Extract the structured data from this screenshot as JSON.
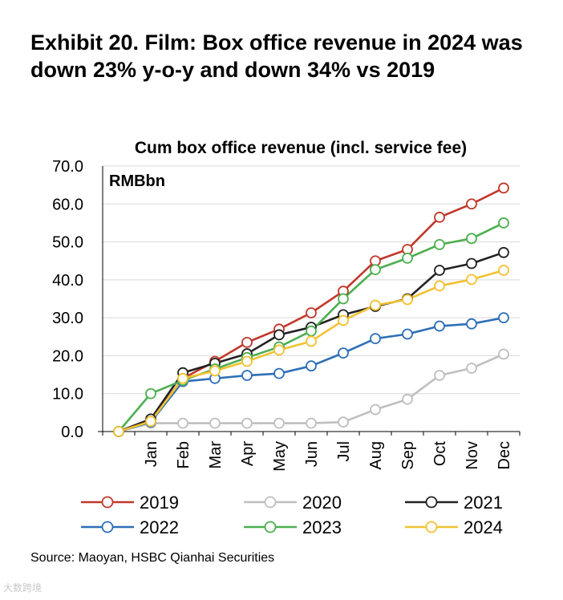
{
  "exhibit": {
    "title": "Exhibit 20. Film: Box office revenue in 2024 was down 23% y-o-y and down 34% vs 2019"
  },
  "footer": {
    "source": "Source: Maoyan, HSBC Qianhai Securities"
  },
  "watermark": {
    "text": "大数跨境"
  },
  "chart_data": {
    "type": "line",
    "title": "Cum box office revenue (incl. service fee)",
    "unit_label": "RMBbn",
    "categories": [
      "",
      "Jan",
      "Feb",
      "Mar",
      "Apr",
      "May",
      "Jun",
      "Jul",
      "Aug",
      "Sep",
      "Oct",
      "Nov",
      "Dec"
    ],
    "ylim": [
      0,
      70
    ],
    "yticks": [
      "0.0",
      "10.0",
      "20.0",
      "30.0",
      "40.0",
      "50.0",
      "60.0",
      "70.0"
    ],
    "grid": true,
    "legend_position": "bottom",
    "series": [
      {
        "name": "2019",
        "color": "#c0392b",
        "values": [
          0,
          3.0,
          14.0,
          18.5,
          23.5,
          27.0,
          31.3,
          37.0,
          45.0,
          48.0,
          56.5,
          60.0,
          64.2
        ]
      },
      {
        "name": "2020",
        "color": "#bfbfbf",
        "values": [
          0,
          2.2,
          2.2,
          2.2,
          2.2,
          2.2,
          2.2,
          2.5,
          5.8,
          8.5,
          14.8,
          16.7,
          20.4
        ]
      },
      {
        "name": "2021",
        "color": "#222222",
        "values": [
          0,
          3.3,
          15.5,
          18.0,
          20.5,
          25.5,
          27.5,
          30.8,
          33.0,
          35.0,
          42.5,
          44.3,
          47.2
        ]
      },
      {
        "name": "2022",
        "color": "#2e6fb7",
        "values": [
          0,
          2.5,
          13.2,
          14.0,
          14.8,
          15.3,
          17.3,
          20.7,
          24.5,
          25.7,
          27.8,
          28.4,
          30.0
        ]
      },
      {
        "name": "2023",
        "color": "#4caf50",
        "values": [
          0,
          10.0,
          13.5,
          16.5,
          19.5,
          22.3,
          26.5,
          35.0,
          42.7,
          45.7,
          49.3,
          50.9,
          55.0
        ]
      },
      {
        "name": "2024",
        "color": "#f2c232",
        "values": [
          0,
          2.7,
          14.0,
          16.0,
          18.5,
          21.5,
          23.8,
          29.3,
          33.3,
          34.8,
          38.4,
          40.1,
          42.5
        ]
      }
    ]
  }
}
